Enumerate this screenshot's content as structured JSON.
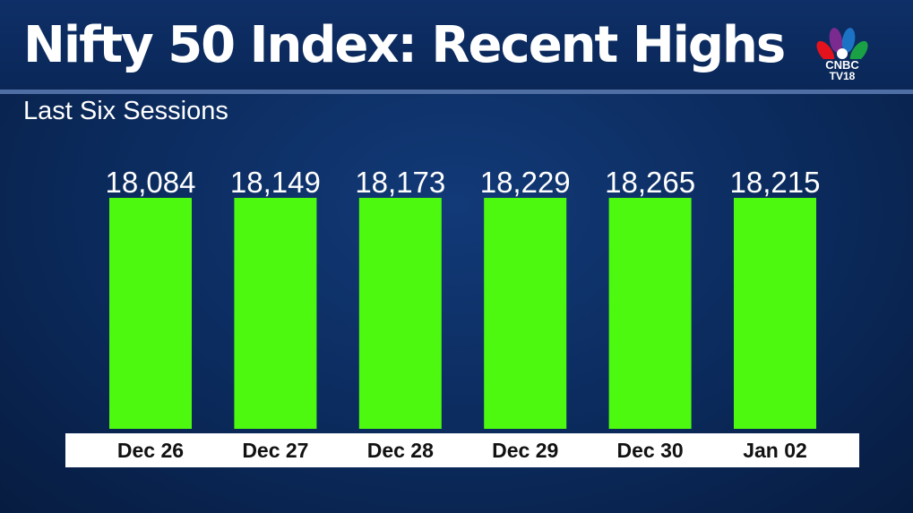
{
  "header": {
    "title": "Nifty 50 Index: Recent Highs",
    "subtitle": "Last Six Sessions"
  },
  "logo": {
    "line1": "CNBC",
    "line2": "TV18",
    "icon": "peacock-icon"
  },
  "colors": {
    "bar": "#4dfa0f",
    "background": "#0b2a5c",
    "label": "#ffffff",
    "axis_text": "#111111"
  },
  "chart_data": {
    "type": "bar",
    "title": "Nifty 50 Index: Recent Highs",
    "subtitle": "Last Six Sessions",
    "categories": [
      "Dec 26",
      "Dec 27",
      "Dec 28",
      "Dec 29",
      "Dec 30",
      "Jan 02"
    ],
    "values": [
      18084,
      18149,
      18173,
      18229,
      18265,
      18215
    ],
    "value_labels": [
      "18,084",
      "18,149",
      "18,173",
      "18,229",
      "18,265",
      "18,215"
    ],
    "grid": false,
    "legend": "none"
  }
}
